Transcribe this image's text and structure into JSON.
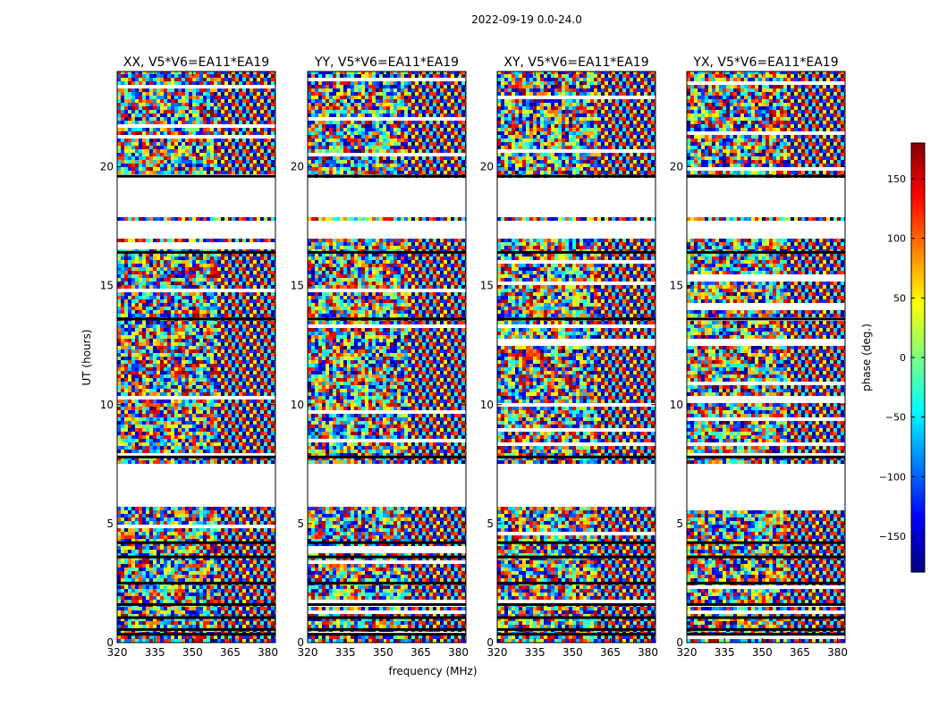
{
  "suptitle": "2022-09-19 0.0-24.0",
  "chart_data": {
    "type": "heatmap",
    "xlabel": "frequency (MHz)",
    "ylabel": "UT (hours)",
    "xlim": [
      320,
      383
    ],
    "ylim": [
      0,
      24
    ],
    "x_ticks": [
      320,
      335,
      350,
      365,
      380
    ],
    "y_ticks": [
      0,
      5,
      10,
      15,
      20
    ],
    "colorbar": {
      "label": "phase (deg.)",
      "range": [
        -180,
        180
      ],
      "ticks": [
        150,
        100,
        50,
        0,
        -50,
        -100,
        -150
      ],
      "colormap": "jet",
      "colors": [
        "#00007f",
        "#0000ff",
        "#007fff",
        "#00ffff",
        "#7fff7f",
        "#ffff00",
        "#ff7f00",
        "#ff0000",
        "#7f0000"
      ]
    },
    "flagged_gaps_hours": [
      [
        5.85,
        7.6
      ],
      [
        18.0,
        19.55
      ],
      [
        17.0,
        17.8
      ]
    ],
    "panels": [
      {
        "title": "XX, V5*V6=EA11*EA19",
        "mean_phase_deg": -110,
        "spread": 0.9
      },
      {
        "title": "YY, V5*V6=EA11*EA19",
        "mean_phase_deg": -30,
        "spread": 0.9
      },
      {
        "title": "XY, V5*V6=EA11*EA19",
        "mean_phase_deg": 0,
        "spread": 1.0
      },
      {
        "title": "YX, V5*V6=EA11*EA19",
        "mean_phase_deg": 0,
        "spread": 1.0
      }
    ]
  }
}
